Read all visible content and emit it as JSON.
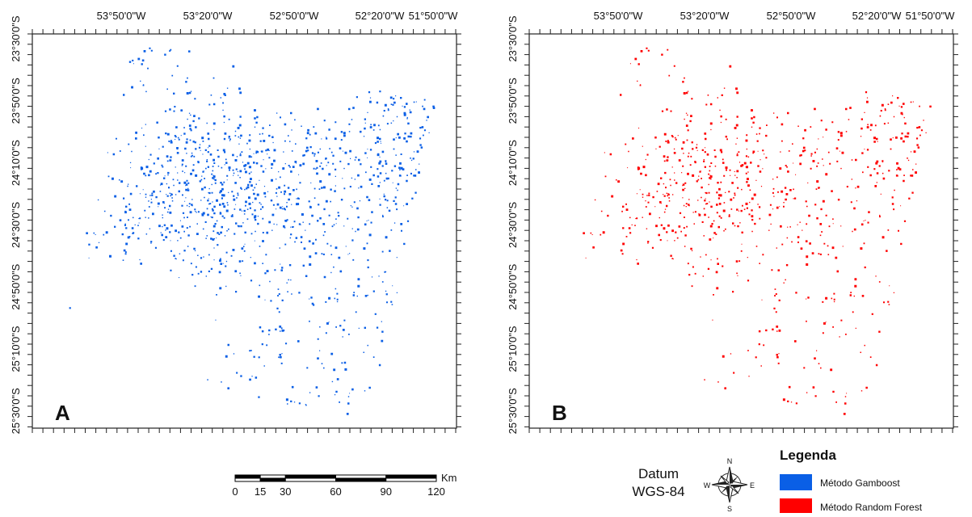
{
  "panels": [
    {
      "label": "A"
    },
    {
      "label": "B"
    }
  ],
  "longitude_labels": [
    "53°50'0\"W",
    "53°20'0\"W",
    "52°50'0\"W",
    "52°20'0\"W",
    "51°50'0\"W"
  ],
  "latitude_labels": [
    "23°30'0\"S",
    "23°50'0\"S",
    "24°10'0\"S",
    "24°30'0\"S",
    "24°50'0\"S",
    "25°10'0\"S",
    "25°30'0\"S"
  ],
  "scale_bar": {
    "ticks": [
      0,
      15,
      30,
      60,
      90,
      120
    ],
    "unit": "Km"
  },
  "datum": [
    "Datum",
    "WGS-84"
  ],
  "compass": {
    "n": "N",
    "s": "S",
    "e": "E",
    "w": "W"
  },
  "legend": {
    "title": "Legenda",
    "items": [
      {
        "label": "Método Gamboost",
        "color": "#0a5fe6"
      },
      {
        "label": "Método Random Forest",
        "color": "#ff0000"
      }
    ]
  }
}
